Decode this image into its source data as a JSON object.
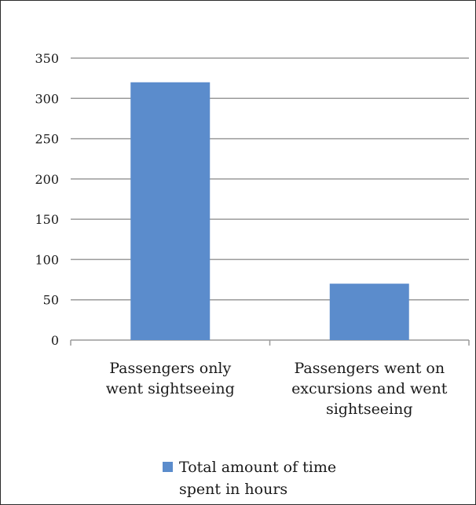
{
  "chart_data": {
    "type": "bar",
    "categories": [
      [
        "Passengers only",
        "went sightseeing"
      ],
      [
        "Passengers went on",
        "excursions and went",
        "sightseeing"
      ]
    ],
    "series": [
      {
        "name": "Total amount of time spent in hours",
        "values": [
          320,
          70
        ],
        "color": "#5b8ccc"
      }
    ],
    "legend": {
      "position": "bottom",
      "lines": [
        "Total amount of time",
        "spent in hours"
      ]
    },
    "ylim": [
      0,
      350
    ],
    "yticks": [
      0,
      50,
      100,
      150,
      200,
      250,
      300,
      350
    ],
    "grid": true,
    "gridColor": "#9a9a9a",
    "axisColor": "#9a9a9a"
  }
}
